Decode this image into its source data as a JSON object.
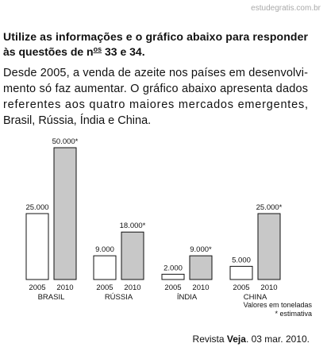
{
  "watermark": "estudegratis.com.br",
  "header": {
    "line1": "Utilize as informações e o gráfico abaixo para responder",
    "line2_start": "às questões de n",
    "line2_sup": "os",
    "line2_end": " 33 e 34."
  },
  "paragraph": [
    "Desde 2005, a venda de azeite nos países em desenvolvi-",
    "mento só faz aumentar. O gráfico abaixo apresenta dados",
    "referentes aos quatro maiores mercados emergentes,",
    "Brasil, Rússia, Índia e China."
  ],
  "chart_data": {
    "type": "bar",
    "categories": [
      "BRASIL",
      "RÚSSIA",
      "ÍNDIA",
      "CHINA"
    ],
    "series": [
      {
        "name": "2005",
        "color": "#ffffff",
        "values": [
          25000,
          9000,
          2000,
          5000
        ],
        "value_labels": [
          "25.000",
          "9.000",
          "2.000",
          "5.000"
        ]
      },
      {
        "name": "2010",
        "color": "#c8c8c8",
        "values": [
          50000,
          18000,
          9000,
          25000
        ],
        "value_labels": [
          "50.000*",
          "18.000*",
          "9.000*",
          "25.000*"
        ]
      }
    ],
    "notes": [
      "Valores em toneladas",
      "* estimativa"
    ]
  },
  "source": {
    "prefix": "Revista ",
    "name": "Veja",
    "suffix": ". 03 mar. 2010."
  }
}
